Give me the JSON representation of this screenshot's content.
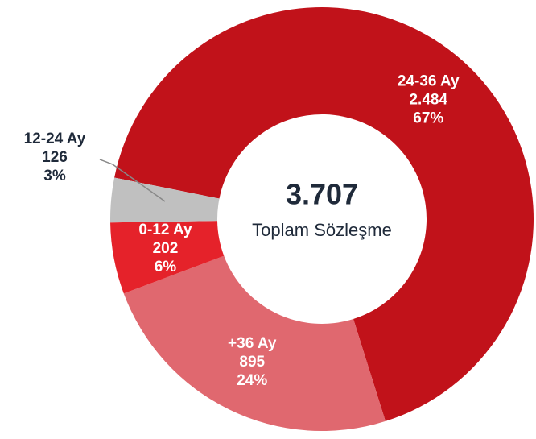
{
  "chart_data": {
    "type": "donut",
    "categories": [
      "24-36 Ay",
      "+36 Ay",
      "0-12 Ay",
      "12-24 Ay"
    ],
    "values": [
      2484,
      895,
      202,
      126
    ],
    "value_labels": [
      "2.484",
      "895",
      "202",
      "126"
    ],
    "percent_labels": [
      "67%",
      "24%",
      "6%",
      "3%"
    ],
    "colors": [
      "#c1121a",
      "#e0686f",
      "#e5222a",
      "#c0c0c0"
    ],
    "center_title": "3.707",
    "center_subtitle": "Toplam Sözleşme"
  }
}
